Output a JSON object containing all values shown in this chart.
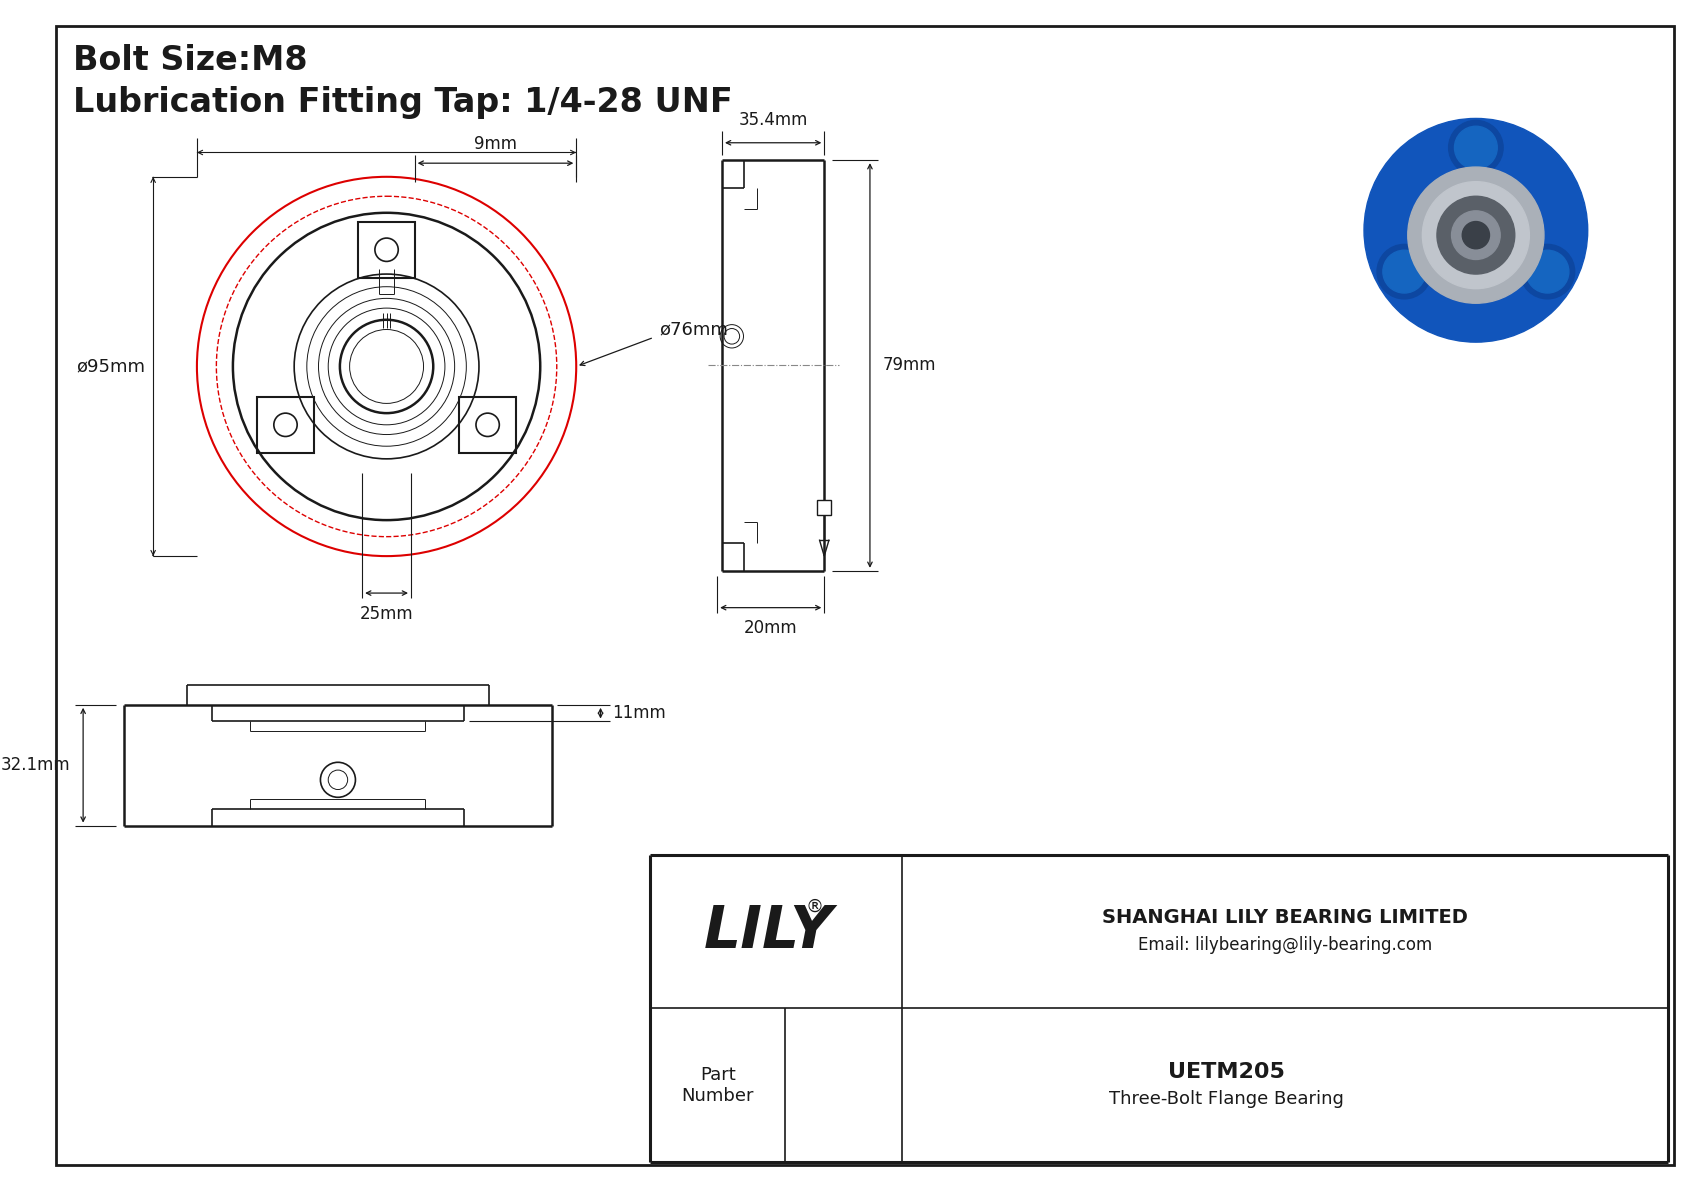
{
  "title_line1": "Bolt Size:M8",
  "title_line2": "Lubrication Fitting Tap: 1/4-28 UNF",
  "dim_9mm": "9mm",
  "dim_95mm": "ø95mm",
  "dim_76mm": "ø76mm",
  "dim_25mm": "25mm",
  "dim_354mm": "35.4mm",
  "dim_79mm": "79mm",
  "dim_20mm": "20mm",
  "dim_11mm": "11mm",
  "dim_321mm": "32.1mm",
  "company": "SHANGHAI LILY BEARING LIMITED",
  "email": "Email: lilybearing@lily-bearing.com",
  "part_label": "Part\nNumber",
  "part_number": "UETM205",
  "part_desc": "Three-Bolt Flange Bearing",
  "logo": "LILY",
  "logo_reg": "®",
  "bg_color": "#ffffff",
  "line_color": "#1a1a1a",
  "red_color": "#dd0000",
  "border_color": "#000000",
  "title_fontsize": 24,
  "dim_fontsize": 13,
  "logo_fontsize": 42,
  "annot_fontsize": 12
}
